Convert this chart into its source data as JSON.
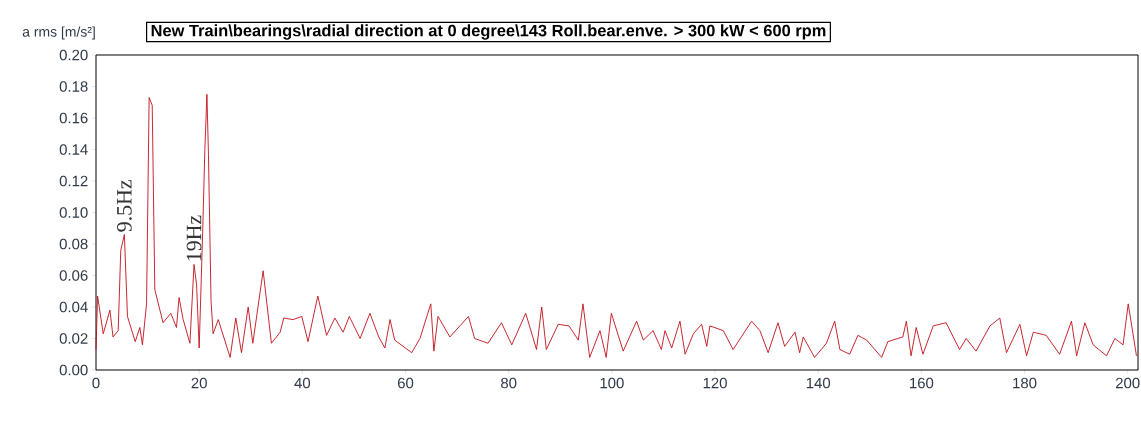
{
  "chart_data": {
    "type": "line",
    "title": "New Train\\bearings\\radial direction at 0 degree\\143 Roll.bear.enve. > 300 kW < 600 rpm",
    "ylabel": "a rms [m/s²]",
    "color": "#c0101a",
    "xlim": [
      0,
      202
    ],
    "ylim": [
      0,
      0.2
    ],
    "xticks": [
      0,
      20,
      40,
      60,
      80,
      100,
      120,
      140,
      160,
      180,
      200
    ],
    "yticks": [
      {
        "value": 0,
        "label": "0.00"
      },
      {
        "value": 0.02,
        "label": "0.02"
      },
      {
        "value": 0.04,
        "label": "0.04"
      },
      {
        "value": 0.06,
        "label": "0.06"
      },
      {
        "value": 0.08,
        "label": "0.08"
      },
      {
        "value": 0.1,
        "label": "0.10"
      },
      {
        "value": 0.12,
        "label": "0.12"
      },
      {
        "value": 0.14,
        "label": "0.14"
      },
      {
        "value": 0.16,
        "label": "0.16"
      },
      {
        "value": 0.18,
        "label": "0.18"
      },
      {
        "value": 0.2,
        "label": "0.20"
      }
    ],
    "annotations": [
      {
        "text": "9.5Hz",
        "x": 5.5,
        "y": 0.086
      },
      {
        "text": "19Hz",
        "x": 19,
        "y": 0.067
      }
    ],
    "x": [
      0,
      0.3,
      1.4,
      2.7,
      3.3,
      4.3,
      4.8,
      5.5,
      6.1,
      7.6,
      8.5,
      9.0,
      9.8,
      10.3,
      10.9,
      11.4,
      13.0,
      14.5,
      15.6,
      16.1,
      16.9,
      18.2,
      19.0,
      19.5,
      20.0,
      20.7,
      21.1,
      21.5,
      21.8,
      22.3,
      22.7,
      23.7,
      26.0,
      27.1,
      28.2,
      29.5,
      30.4,
      32.4,
      34.0,
      35.7,
      36.4,
      38.2,
      39.9,
      41.1,
      43.0,
      44.7,
      46.3,
      47.9,
      49.1,
      51.2,
      53.1,
      54.8,
      56.0,
      57.0,
      57.9,
      61.2,
      62.8,
      64.9,
      65.5,
      66.3,
      68.6,
      72.2,
      73.4,
      76.0,
      78.6,
      80.6,
      83.3,
      85.4,
      86.4,
      87.3,
      89.6,
      91.7,
      93.5,
      94.4,
      95.7,
      97.7,
      98.9,
      99.9,
      102.2,
      104.8,
      106.1,
      108.0,
      109.6,
      110.3,
      111.6,
      113.2,
      114.2,
      115.8,
      117.4,
      118.4,
      119.0,
      121.6,
      123.5,
      127.1,
      128.7,
      130.3,
      132.2,
      133.5,
      135.5,
      136.4,
      137.1,
      139.3,
      141.6,
      143.2,
      144.2,
      146.1,
      147.7,
      149.4,
      152.3,
      153.5,
      156.4,
      157.1,
      158.0,
      159.0,
      160.3,
      162.3,
      164.8,
      167.4,
      168.7,
      170.6,
      173.3,
      175.2,
      176.5,
      179.1,
      180.4,
      181.7,
      184.2,
      186.8,
      189.1,
      190.1,
      191.7,
      193.3,
      195.9,
      197.5,
      199.1,
      200.1,
      201.7
    ],
    "values": [
      0.013,
      0.047,
      0.023,
      0.038,
      0.021,
      0.025,
      0.076,
      0.086,
      0.034,
      0.018,
      0.027,
      0.016,
      0.042,
      0.173,
      0.168,
      0.051,
      0.03,
      0.036,
      0.027,
      0.046,
      0.032,
      0.017,
      0.067,
      0.054,
      0.014,
      0.09,
      0.14,
      0.175,
      0.137,
      0.044,
      0.023,
      0.032,
      0.008,
      0.033,
      0.011,
      0.04,
      0.017,
      0.063,
      0.017,
      0.024,
      0.033,
      0.032,
      0.034,
      0.018,
      0.047,
      0.022,
      0.033,
      0.024,
      0.034,
      0.02,
      0.036,
      0.021,
      0.014,
      0.032,
      0.019,
      0.011,
      0.02,
      0.042,
      0.012,
      0.034,
      0.021,
      0.034,
      0.02,
      0.017,
      0.03,
      0.016,
      0.036,
      0.013,
      0.04,
      0.013,
      0.029,
      0.028,
      0.019,
      0.042,
      0.008,
      0.025,
      0.008,
      0.036,
      0.012,
      0.031,
      0.019,
      0.025,
      0.013,
      0.025,
      0.014,
      0.031,
      0.01,
      0.023,
      0.029,
      0.015,
      0.028,
      0.025,
      0.013,
      0.031,
      0.025,
      0.011,
      0.03,
      0.015,
      0.024,
      0.011,
      0.021,
      0.008,
      0.017,
      0.031,
      0.013,
      0.01,
      0.022,
      0.019,
      0.008,
      0.018,
      0.021,
      0.031,
      0.009,
      0.027,
      0.01,
      0.028,
      0.03,
      0.013,
      0.02,
      0.012,
      0.028,
      0.033,
      0.011,
      0.029,
      0.009,
      0.024,
      0.022,
      0.01,
      0.031,
      0.009,
      0.03,
      0.016,
      0.009,
      0.02,
      0.016,
      0.042,
      0.009
    ]
  }
}
